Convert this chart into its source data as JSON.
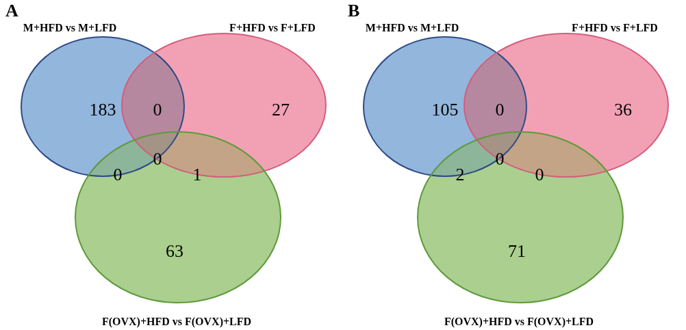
{
  "chart_data": [
    {
      "type": "other",
      "title": "A",
      "colors": [
        "#93b6dc",
        "#b6889f",
        "#f2a1b4",
        "#8db59a",
        "#a39486",
        "#c4a486",
        "#aacf8f"
      ],
      "data_labels": true,
      "categories": [
        null,
        null,
        null,
        null,
        null,
        null,
        null
      ],
      "values": [
        183,
        0,
        27,
        0,
        0,
        1,
        63
      ],
      "annotations": [
        "M+HFD vs M+LFD",
        "F+HFD vs F+LFD",
        "F(OVX)+HFD vs F(OVX)+LFD"
      ]
    },
    {
      "type": "other",
      "title": "B",
      "colors": [
        "#93b6dc",
        "#b6889f",
        "#f2a1b4",
        "#8db59a",
        "#a39486",
        "#c4a486",
        "#aacf8f"
      ],
      "data_labels": true,
      "categories": [
        null,
        null,
        null,
        null,
        null,
        null,
        null
      ],
      "values": [
        105,
        0,
        36,
        2,
        0,
        0,
        71
      ],
      "annotations": [
        "M+HFD vs M+LFD",
        "F+HFD vs F+LFD",
        "F(OVX)+HFD vs F(OVX)+LFD"
      ]
    }
  ]
}
